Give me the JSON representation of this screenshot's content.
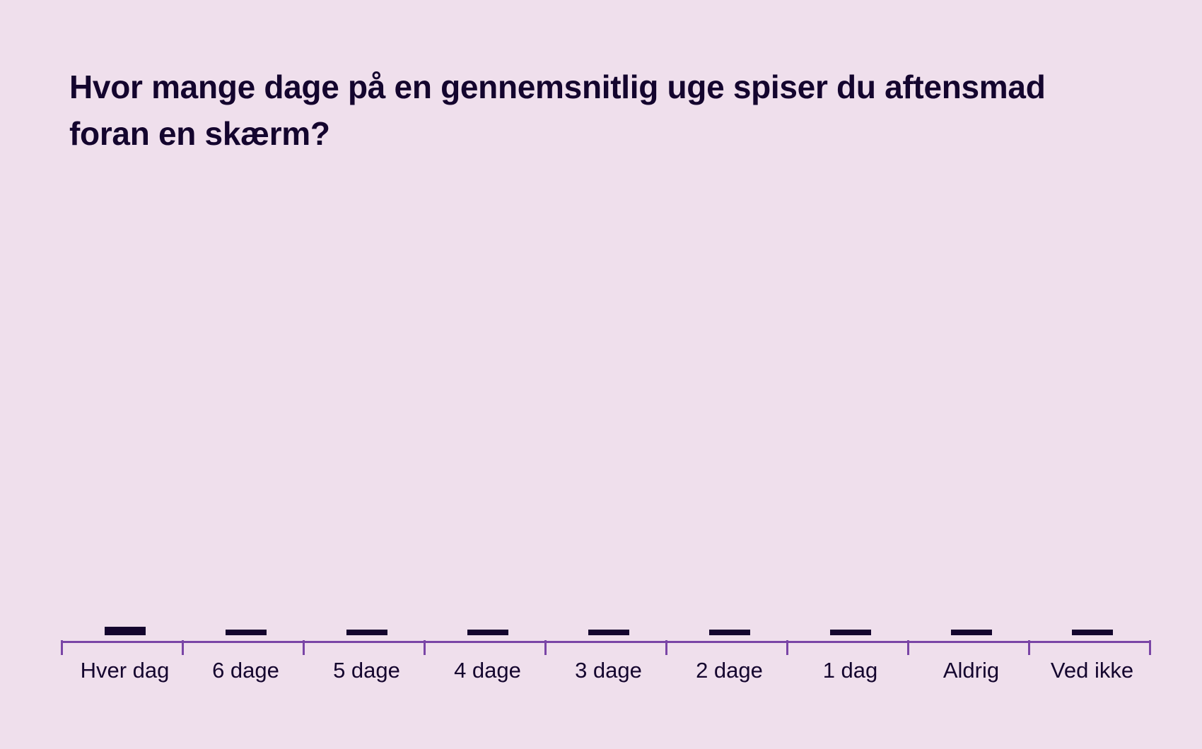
{
  "title": "Hvor mange dage på en gennemsnitlig uge spiser du aftensmad foran en skærm?",
  "colors": {
    "background": "#efdfec",
    "bar": "#14052e",
    "axis": "#7a45a6",
    "text": "#14052e"
  },
  "chart_data": {
    "type": "bar",
    "title": "Hvor mange dage på en gennemsnitlig uge spiser du aftensmad foran en skærm?",
    "xlabel": "",
    "ylabel": "",
    "categories": [
      "Hver dag",
      "6 dage",
      "5 dage",
      "4 dage",
      "3 dage",
      "2 dage",
      "1 dag",
      "Aldrig",
      "Ved ikke"
    ],
    "values": [
      1.8,
      1.2,
      1.2,
      1.2,
      1.2,
      1.2,
      1.2,
      1.2,
      1.2
    ],
    "ylim": [
      0,
      100
    ],
    "grid": false,
    "legend": null,
    "note": "No y-axis or value labels shown; bar heights are near-zero estimates relative to plot height"
  }
}
